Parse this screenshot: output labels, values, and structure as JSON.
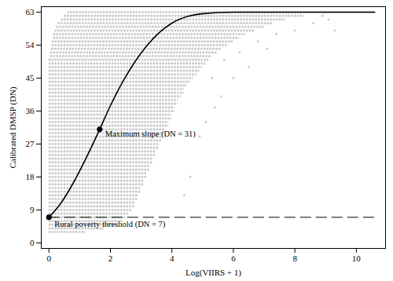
{
  "chart_data": {
    "type": "scatter",
    "x_label": "Log(VIIRS + 1)",
    "y_label": "Calibrated DMSP (DN)",
    "xlim": [
      -0.25,
      10.95
    ],
    "ylim": [
      -1.5,
      64.5
    ],
    "xticks": [
      0,
      2,
      4,
      6,
      8,
      10
    ],
    "yticks": [
      0,
      9,
      18,
      27,
      36,
      45,
      54,
      63
    ],
    "color": "#c8c8c8",
    "point_bands": {
      "y": [
        3,
        4,
        5,
        6,
        7,
        8,
        9,
        10,
        11,
        12,
        13,
        14,
        15,
        16,
        17,
        18,
        19,
        20,
        21,
        22,
        23,
        24,
        25,
        26,
        27,
        28,
        29,
        30,
        31,
        32,
        33,
        34,
        35,
        36,
        37,
        38,
        39,
        40,
        41,
        42,
        43,
        44,
        45,
        46,
        47,
        48,
        49,
        50,
        51,
        52,
        53,
        54,
        55,
        56,
        57,
        58,
        59,
        60,
        61,
        62,
        63
      ],
      "x_min": [
        0,
        0,
        0,
        0,
        0,
        0,
        0,
        0,
        0,
        0,
        0,
        0,
        0,
        0,
        0,
        0,
        0,
        0,
        0,
        0,
        0,
        0,
        0,
        0,
        0,
        0,
        0,
        0,
        0,
        0,
        0,
        0,
        0,
        0,
        0,
        0,
        0,
        0,
        0,
        0,
        0,
        0,
        0,
        0,
        0,
        0,
        0,
        0,
        0.05,
        0.05,
        0.08,
        0.1,
        0.1,
        0.15,
        0.15,
        0.2,
        0.25,
        0.3,
        0.4,
        0.5,
        0.6
      ],
      "x_max": [
        1.2,
        1.8,
        2.2,
        2.4,
        2.5,
        2.6,
        2.7,
        2.8,
        2.8,
        2.9,
        2.9,
        3.0,
        3.0,
        3.1,
        3.1,
        3.2,
        3.2,
        3.3,
        3.3,
        3.4,
        3.4,
        3.5,
        3.5,
        3.6,
        3.6,
        3.7,
        3.7,
        3.8,
        3.8,
        3.9,
        3.9,
        4.0,
        4.0,
        4.1,
        4.1,
        4.2,
        4.2,
        4.3,
        4.4,
        4.4,
        4.5,
        4.6,
        4.7,
        4.8,
        4.9,
        5.0,
        5.1,
        5.2,
        5.3,
        5.5,
        5.6,
        5.8,
        6.0,
        6.2,
        6.4,
        6.7,
        7.0,
        7.3,
        7.7,
        8.3,
        10.6
      ]
    },
    "points": {
      "x": [
        4.9,
        5.1,
        5.4,
        5.6,
        5.3,
        6.0,
        6.5,
        5.7,
        6.2,
        7.1,
        6.8,
        7.4,
        8.0,
        9.3,
        8.6,
        9.1,
        7.8,
        8.9,
        4.4,
        4.6
      ],
      "y": [
        29,
        33,
        37,
        40,
        45,
        45,
        48,
        50,
        52,
        53,
        55,
        57,
        58,
        58,
        60,
        61,
        62,
        62,
        13,
        18
      ]
    },
    "curve": {
      "x": [
        0,
        0.4,
        0.8,
        1.2,
        1.65,
        2.0,
        2.4,
        2.8,
        3.2,
        3.6,
        4.0,
        4.5,
        5.0,
        6.0,
        8.0,
        10.6
      ],
      "y": [
        7,
        11,
        16.5,
        23,
        31,
        37.5,
        44,
        49.5,
        54,
        57.5,
        60,
        61.8,
        62.6,
        63,
        63,
        63
      ],
      "color": "#000000"
    },
    "threshold": {
      "y": 7,
      "x": [
        0,
        10.6
      ],
      "label": "Rural poverty threshold (DN = 7)",
      "line_style": "dashed",
      "color": "#000000"
    },
    "highlights": [
      {
        "x": 0,
        "y": 7
      },
      {
        "x": 1.65,
        "y": 31,
        "label": "Maximum slope (DN = 31)"
      }
    ]
  }
}
